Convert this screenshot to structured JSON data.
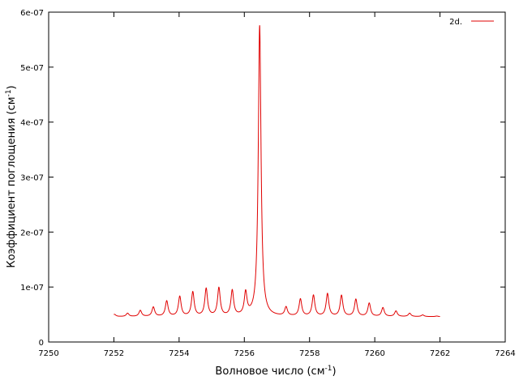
{
  "chart_data": {
    "type": "line",
    "xlabel": "Волновое число (см",
    "xlabel_sup": "-1",
    "xlabel_close": ")",
    "ylabel": "Коэффициент поглощения (см",
    "ylabel_sup": "-1",
    "ylabel_close": ")",
    "xlim": [
      7250,
      7264
    ],
    "ylim": [
      0,
      6e-07
    ],
    "x_ticks": [
      7250,
      7252,
      7254,
      7256,
      7258,
      7260,
      7262,
      7264
    ],
    "x_tick_labels": [
      "7250",
      "7252",
      "7254",
      "7256",
      "7258",
      "7260",
      "7262",
      "7264"
    ],
    "y_ticks": [
      0,
      1e-07,
      2e-07,
      3e-07,
      4e-07,
      5e-07,
      6e-07
    ],
    "y_tick_labels": [
      "0",
      "1e-07",
      "2e-07",
      "3e-07",
      "4e-07",
      "5e-07",
      "6e-07"
    ],
    "grid": false,
    "legend_position": "top-right",
    "series": [
      {
        "name": "2d.",
        "color": "#e00000",
        "x_range": [
          7252.0,
          7262.0
        ],
        "baseline": 4.6e-08,
        "peak_width": 0.05,
        "peaks": [
          {
            "x": 7252.02,
            "y": 5e-08
          },
          {
            "x": 7252.42,
            "y": 5.2e-08
          },
          {
            "x": 7252.81,
            "y": 5.7e-08
          },
          {
            "x": 7253.21,
            "y": 6.3e-08
          },
          {
            "x": 7253.62,
            "y": 7.4e-08
          },
          {
            "x": 7254.02,
            "y": 8.2e-08
          },
          {
            "x": 7254.42,
            "y": 9e-08
          },
          {
            "x": 7254.83,
            "y": 9.6e-08
          },
          {
            "x": 7255.22,
            "y": 9.7e-08
          },
          {
            "x": 7255.63,
            "y": 9.2e-08
          },
          {
            "x": 7256.04,
            "y": 8.7e-08
          },
          {
            "x": 7256.47,
            "y": 5.75e-07
          },
          {
            "x": 7257.28,
            "y": 6.2e-08
          },
          {
            "x": 7257.72,
            "y": 7.7e-08
          },
          {
            "x": 7258.12,
            "y": 8.4e-08
          },
          {
            "x": 7258.55,
            "y": 8.7e-08
          },
          {
            "x": 7258.98,
            "y": 8.4e-08
          },
          {
            "x": 7259.42,
            "y": 7.7e-08
          },
          {
            "x": 7259.83,
            "y": 7e-08
          },
          {
            "x": 7260.25,
            "y": 6.2e-08
          },
          {
            "x": 7260.65,
            "y": 5.6e-08
          },
          {
            "x": 7261.07,
            "y": 5.2e-08
          },
          {
            "x": 7261.47,
            "y": 4.9e-08
          },
          {
            "x": 7261.9,
            "y": 4.7e-08
          }
        ]
      }
    ]
  }
}
